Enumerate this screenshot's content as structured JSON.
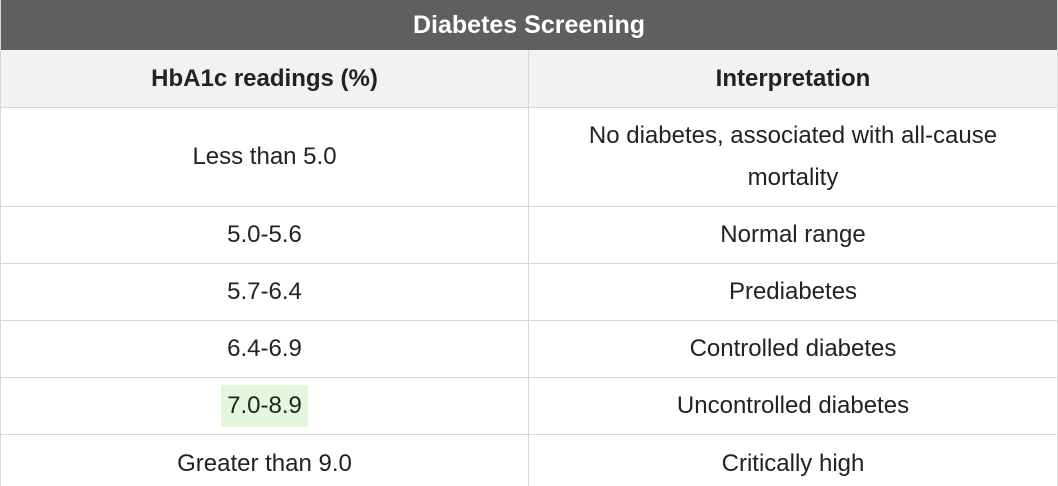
{
  "table": {
    "title": "Diabetes Screening",
    "headers": [
      "HbA1c readings (%)",
      "Interpretation"
    ],
    "rows": [
      {
        "reading": "Less than 5.0",
        "interpretation": "No diabetes, associated with all-cause mortality"
      },
      {
        "reading": "5.0-5.6",
        "interpretation": "Normal range"
      },
      {
        "reading": "5.7-6.4",
        "interpretation": "Prediabetes"
      },
      {
        "reading": "6.4-6.9",
        "interpretation": "Controlled diabetes"
      },
      {
        "reading": "7.0-8.9",
        "interpretation": "Uncontrolled diabetes"
      },
      {
        "reading": "Greater than 9.0",
        "interpretation": "Critically high"
      }
    ],
    "highlight_color": "#e4f7dc",
    "title_bar_color": "#5f5f5f",
    "header_bg_color": "#f2f2f2"
  }
}
